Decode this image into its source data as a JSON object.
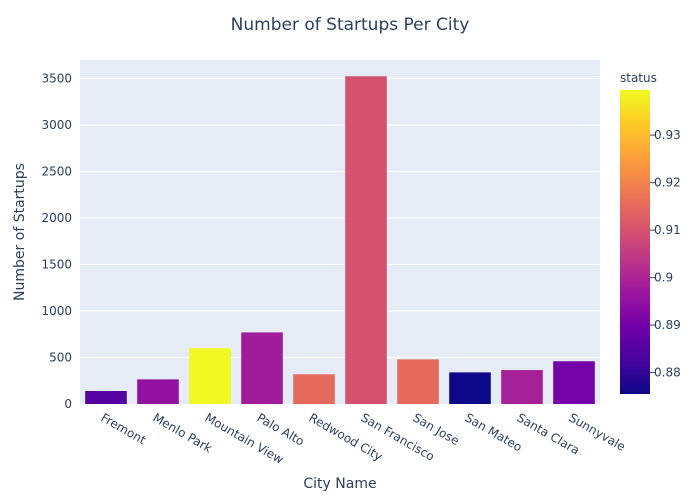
{
  "chart_data": {
    "type": "bar",
    "title": "Number of Startups Per City",
    "xlabel": "City Name",
    "ylabel": "Number of Startups",
    "categories": [
      "Fremont",
      "Menlo Park",
      "Mountain View",
      "Palo Alto",
      "Redwood City",
      "San Francisco",
      "San Jose",
      "San Mateo",
      "Santa Clara",
      "Sunnyvale"
    ],
    "values": [
      140,
      265,
      600,
      770,
      320,
      3525,
      480,
      340,
      365,
      460
    ],
    "status": [
      0.885,
      0.895,
      0.94,
      0.898,
      0.915,
      0.91,
      0.915,
      0.875,
      0.899,
      0.89
    ],
    "ylim": [
      0,
      3700
    ],
    "yticks": [
      0,
      500,
      1000,
      1500,
      2000,
      2500,
      3000,
      3500
    ],
    "grid": true,
    "colorbar": {
      "title": "status",
      "range": [
        0.8755,
        0.9395
      ],
      "ticks": [
        0.88,
        0.89,
        0.9,
        0.91,
        0.92,
        0.93
      ],
      "colorscale": [
        "#0d0887",
        "#46039f",
        "#7201a8",
        "#9c179e",
        "#bd3786",
        "#d8576b",
        "#ed7953",
        "#fb9f3a",
        "#fdca26",
        "#f0f921"
      ]
    },
    "colors": {
      "plot_bg": "#e5ecf6",
      "grid": "#ffffff",
      "text": "#2a3f5f"
    }
  }
}
